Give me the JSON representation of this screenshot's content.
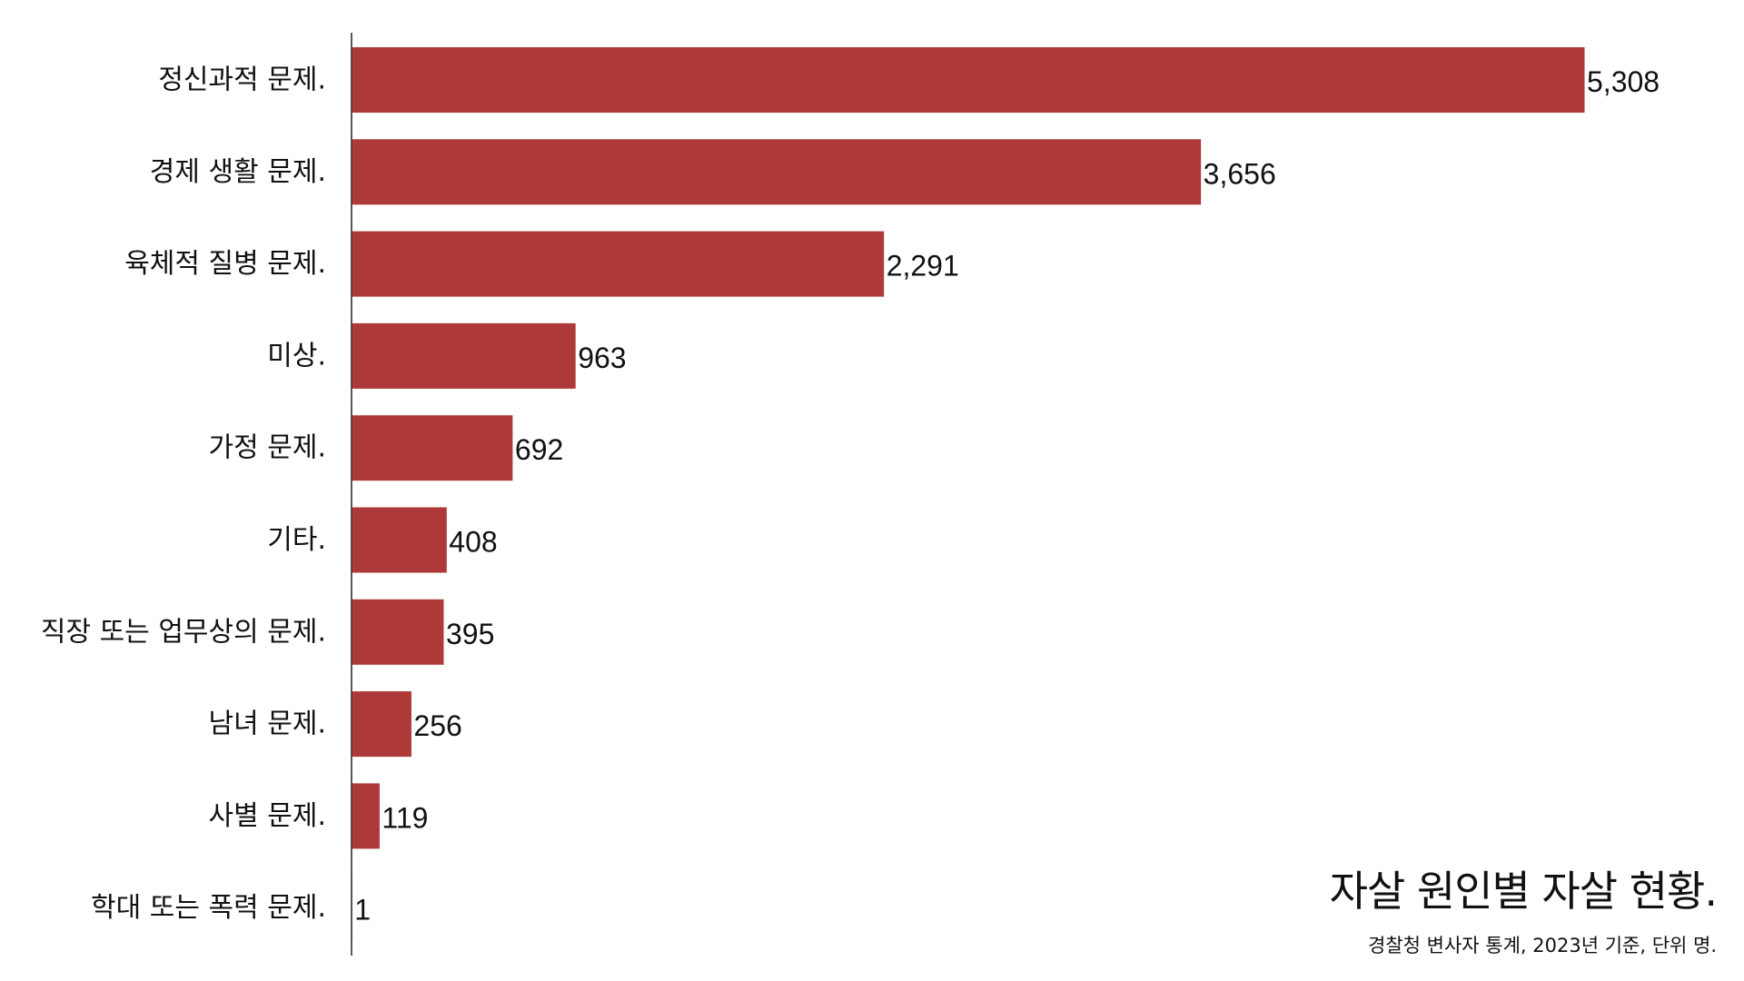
{
  "chart_data": {
    "type": "bar",
    "orientation": "horizontal",
    "title": "자살 원인별 자살 현황.",
    "subtitle": "경찰청 변사자 통계, 2023년 기준, 단위 명.",
    "categories": [
      "정신과적 문제.",
      "경제 생활 문제.",
      "육체적 질병 문제.",
      "미상.",
      "가정 문제.",
      "기타.",
      "직장 또는 업무상의 문제.",
      "남녀 문제.",
      "사별 문제.",
      "학대 또는 폭력 문제."
    ],
    "values": [
      5308,
      3656,
      2291,
      963,
      692,
      408,
      395,
      256,
      119,
      1
    ],
    "value_labels": [
      "5,308",
      "3,656",
      "2,291",
      "963",
      "692",
      "408",
      "395",
      "256",
      "119",
      "1"
    ],
    "xlim": [
      0,
      5308
    ],
    "grid": false,
    "bar_color": "#AD3A38"
  }
}
